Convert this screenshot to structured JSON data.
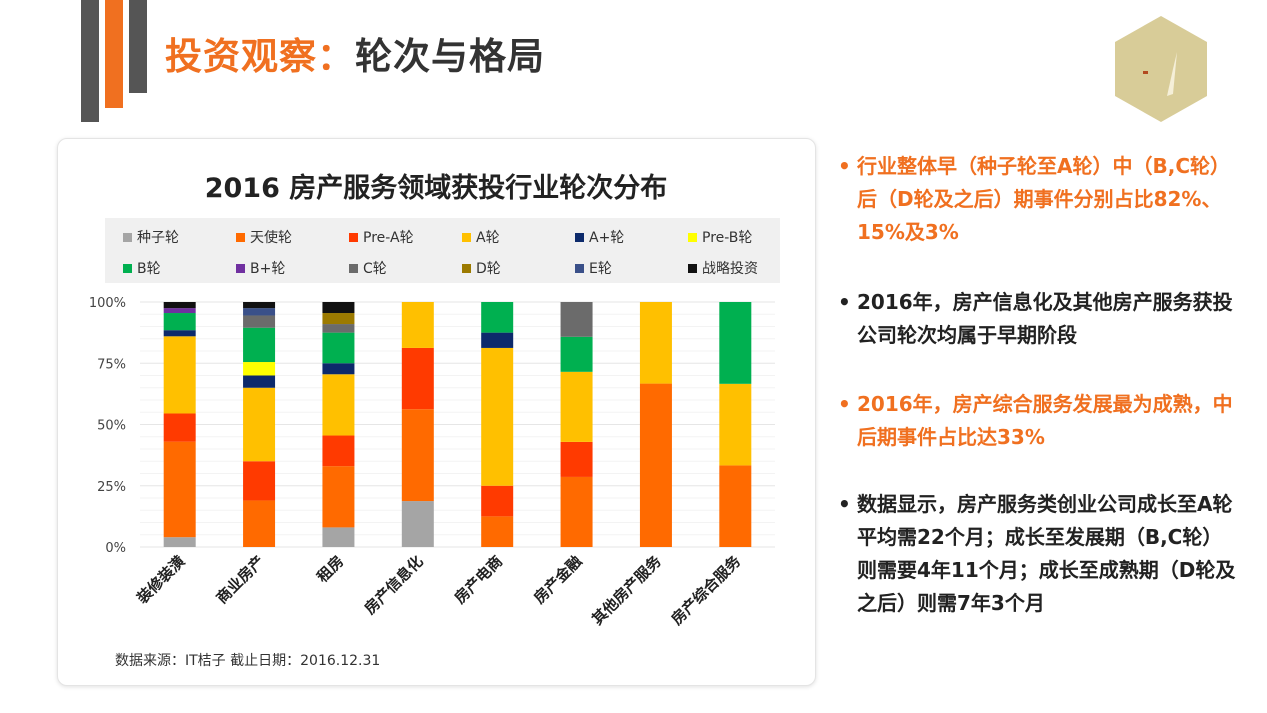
{
  "header": {
    "title_accent": "投资观察：",
    "title_main": "轮次与格局"
  },
  "colors": {
    "accent": "#f07020",
    "dark": "#555555",
    "logo": "#d8cc98"
  },
  "chart_data": {
    "type": "bar",
    "stacked": true,
    "title": "2016 房产服务领域获投行业轮次分布",
    "categories": [
      "装修装潢",
      "商业房产",
      "租房",
      "房产信息化",
      "房产电商",
      "房产金融",
      "其他房产服务",
      "房产综合服务"
    ],
    "ylim": [
      0,
      100
    ],
    "yticks": [
      "0%",
      "25%",
      "50%",
      "75%",
      "100%"
    ],
    "grid": true,
    "legend_position": "top",
    "series": [
      {
        "name": "种子轮",
        "color": "#a5a5a5",
        "values": [
          4,
          0,
          8,
          18.75,
          0,
          0,
          0,
          0
        ]
      },
      {
        "name": "天使轮",
        "color": "#ff6a00",
        "values": [
          39,
          19,
          25,
          37.5,
          12.5,
          28.6,
          66.7,
          33.3
        ]
      },
      {
        "name": "Pre-A轮",
        "color": "#ff3a00",
        "values": [
          11.5,
          16,
          12.5,
          25,
          12.5,
          14.3,
          0,
          0
        ]
      },
      {
        "name": "A轮",
        "color": "#ffc000",
        "values": [
          31.5,
          30,
          25,
          18.75,
          56.25,
          28.6,
          33.3,
          33.3
        ]
      },
      {
        "name": "A+轮",
        "color": "#0d2a6b",
        "values": [
          2.5,
          5,
          4.5,
          0,
          6.25,
          0,
          0,
          0
        ]
      },
      {
        "name": "Pre-B轮",
        "color": "#ffff00",
        "values": [
          0,
          5.5,
          0,
          0,
          0,
          0,
          0,
          0
        ]
      },
      {
        "name": "B轮",
        "color": "#00b050",
        "values": [
          7,
          14,
          12.5,
          0,
          12.5,
          14.3,
          0,
          33.4
        ]
      },
      {
        "name": "B+轮",
        "color": "#7030a0",
        "values": [
          2,
          0,
          0,
          0,
          0,
          0,
          0,
          0
        ]
      },
      {
        "name": "C轮",
        "color": "#6b6b6b",
        "values": [
          0,
          5,
          3.5,
          0,
          0,
          14.2,
          0,
          0
        ]
      },
      {
        "name": "D轮",
        "color": "#9c7a00",
        "values": [
          0,
          0,
          4.5,
          0,
          0,
          0,
          0,
          0
        ]
      },
      {
        "name": "E轮",
        "color": "#3a5089",
        "values": [
          0,
          3,
          0,
          0,
          0,
          0,
          0,
          0
        ]
      },
      {
        "name": "战略投资",
        "color": "#111111",
        "values": [
          2.5,
          2.5,
          4.5,
          0,
          0,
          0,
          0,
          0
        ]
      }
    ],
    "source": "数据来源：IT桔子  截止日期：2016.12.31"
  },
  "bullets": [
    {
      "text": "行业整体早（种子轮至A轮）中（B,C轮）后（D轮及之后）期事件分别占比82%、15%及3%",
      "color": "#f07020"
    },
    {
      "text": "2016年，房产信息化及其他房产服务获投公司轮次均属于早期阶段",
      "color": "#222222"
    },
    {
      "text": "2016年，房产综合服务发展最为成熟，中后期事件占比达33%",
      "color": "#f07020"
    },
    {
      "text": "数据显示，房产服务类创业公司成长至A轮平均需22个月；成长至发展期（B,C轮）则需要4年11个月；成长至成熟期（D轮及之后）则需7年3个月",
      "color": "#222222"
    }
  ],
  "bullet_symbol": "•"
}
